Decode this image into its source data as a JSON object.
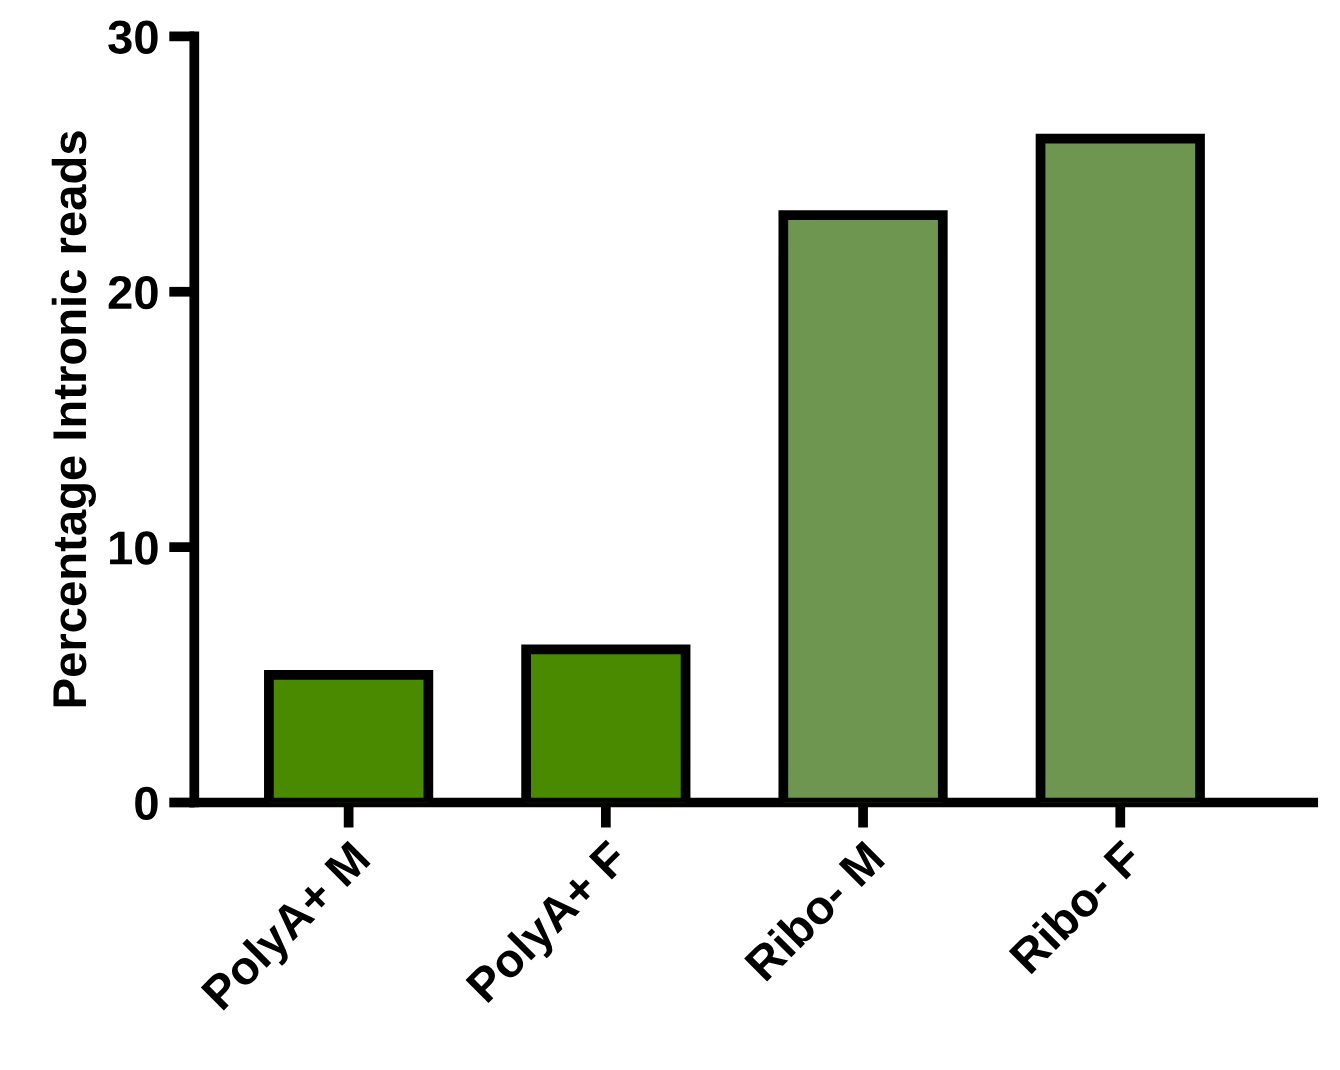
{
  "chart_data": {
    "type": "bar",
    "ylabel": "Percentage Intronic reads",
    "categories": [
      "PolyA+ M",
      "PolyA+ F",
      "Ribo- M",
      "Ribo- F"
    ],
    "values": [
      5,
      6,
      23,
      26
    ],
    "colors": [
      "#4a8a00",
      "#4a8a00",
      "#6f9650",
      "#6f9650"
    ],
    "ylim": [
      0,
      30
    ],
    "yticks": [
      0,
      10,
      20,
      30
    ],
    "grid": false,
    "legend": false
  }
}
